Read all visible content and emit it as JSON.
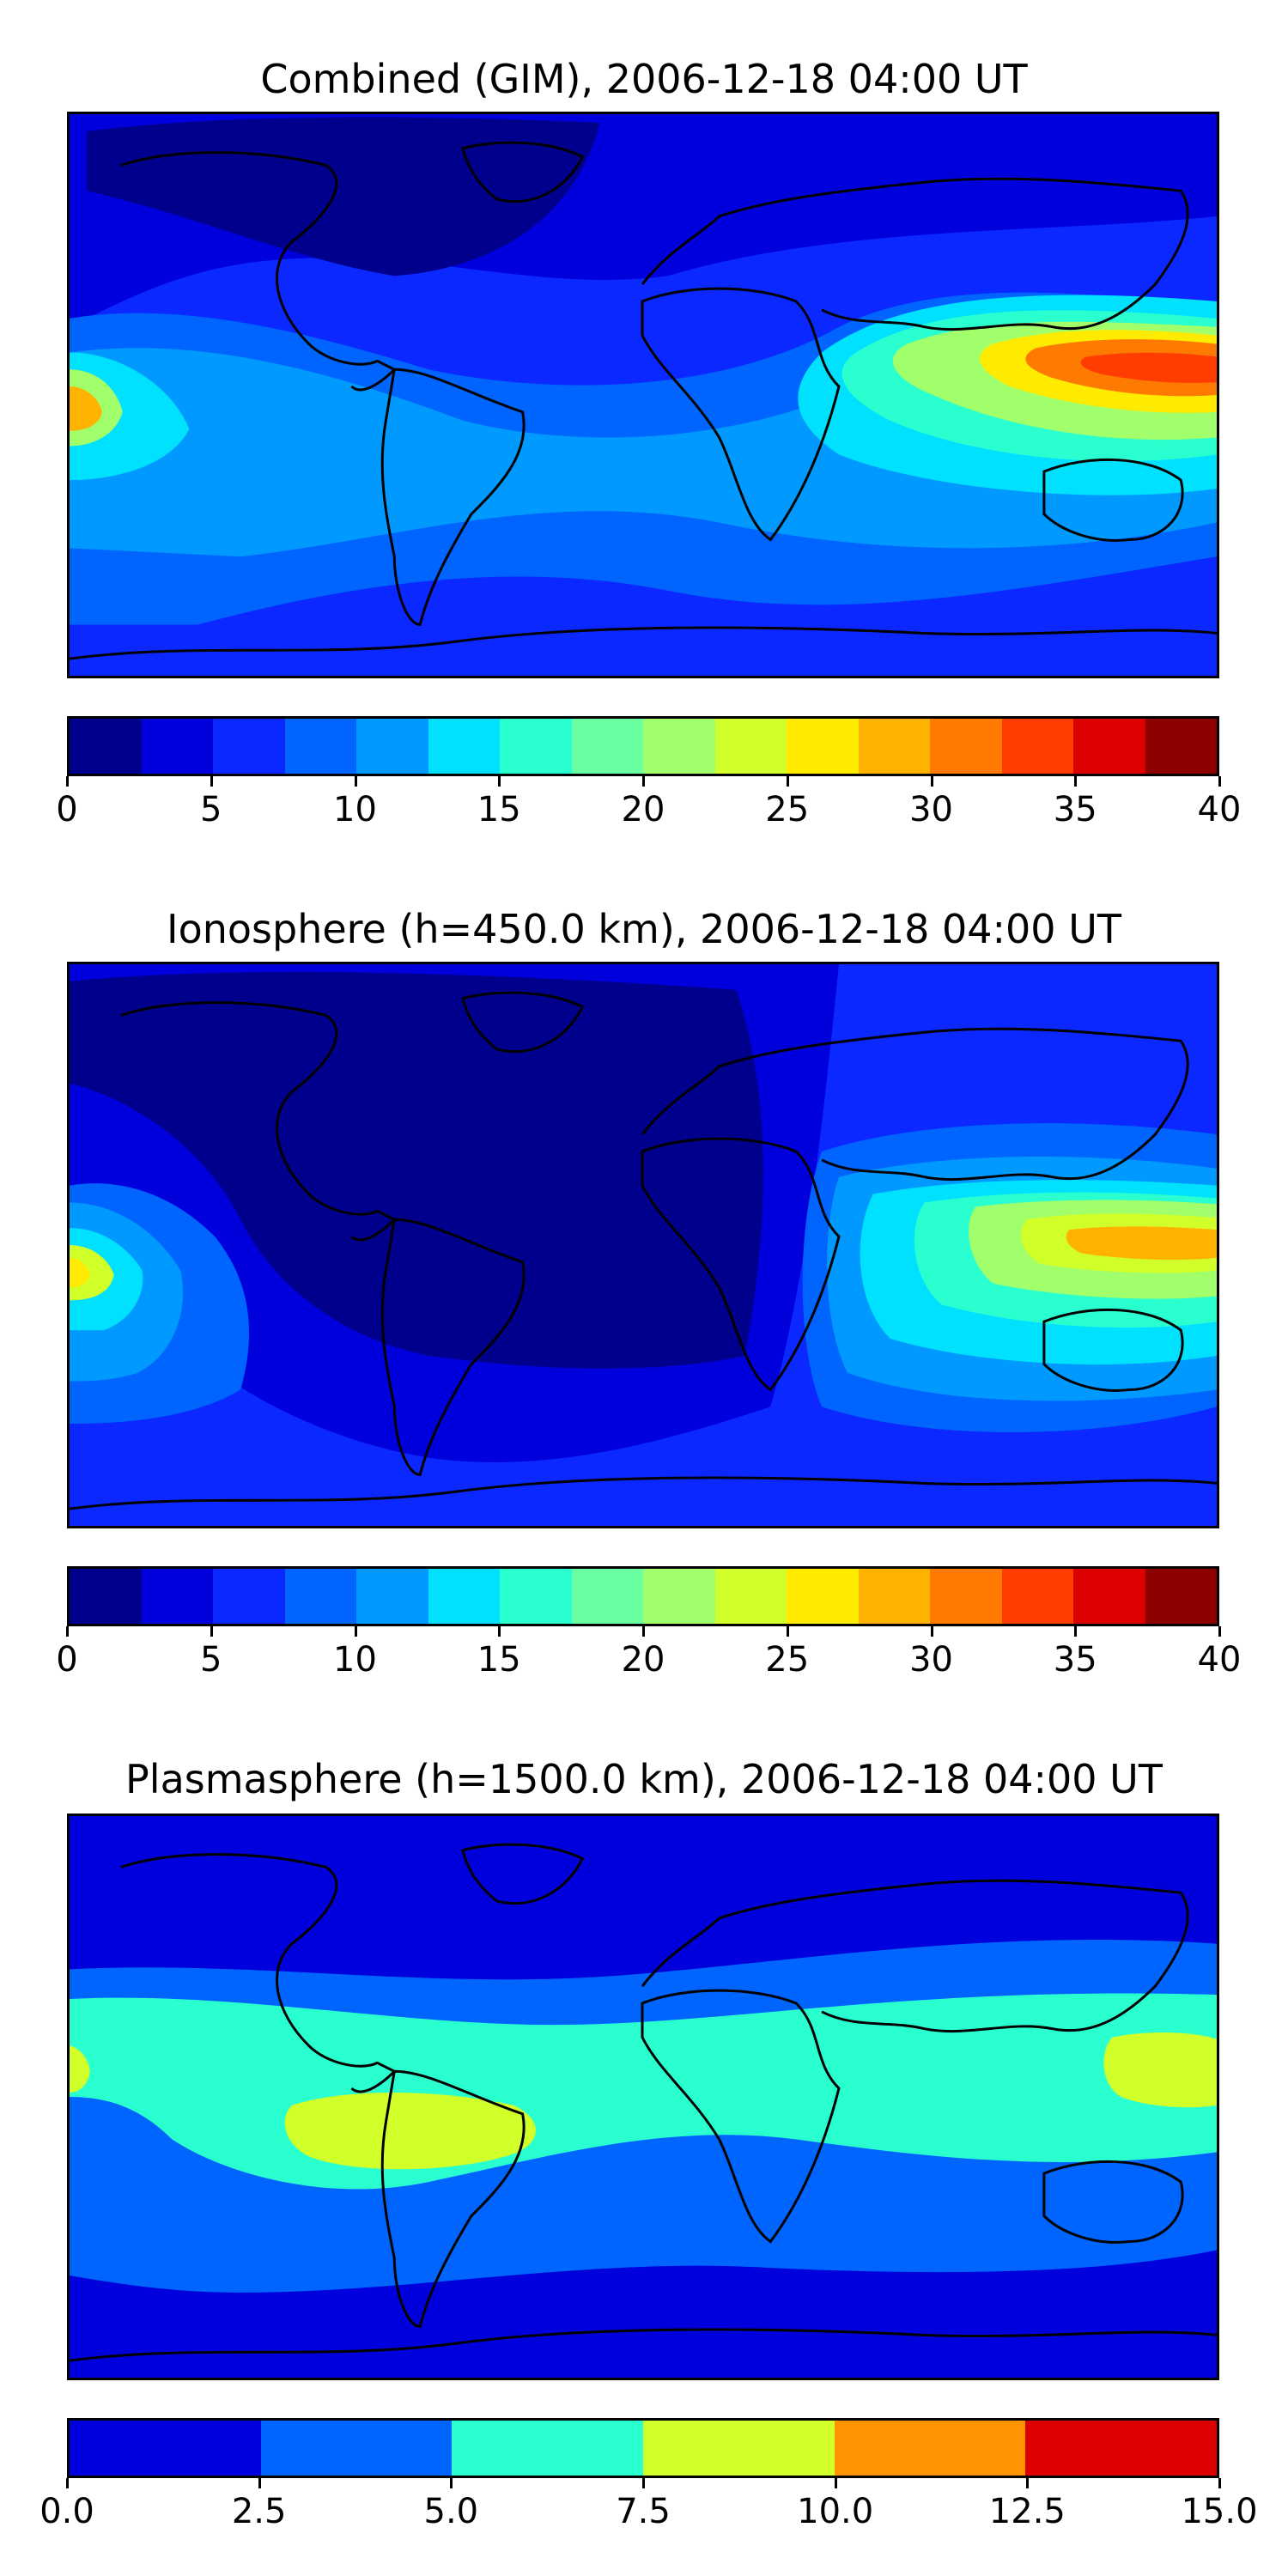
{
  "panels": [
    {
      "title": "Combined (GIM), 2006-12-18 04:00 UT",
      "colorbar": {
        "min": 0,
        "max": 40,
        "ticks": [
          "0",
          "5",
          "10",
          "15",
          "20",
          "25",
          "30",
          "35",
          "40"
        ],
        "colors": [
          "#00008d",
          "#0000dc",
          "#0a28ff",
          "#0064ff",
          "#0099ff",
          "#00e0ff",
          "#2affd0",
          "#6affa0",
          "#a0ff6a",
          "#d0ff2a",
          "#ffeb00",
          "#ffb300",
          "#ff7a00",
          "#ff3d00",
          "#dc0000",
          "#8d0000"
        ]
      },
      "field": {
        "background": "#0a28ff",
        "regions": [
          {
            "level": "0-2.5",
            "color": "#00008d",
            "where": "northern high latitudes, North America / Arctic"
          },
          {
            "level": "10-12.5",
            "color": "#0099ff",
            "where": "equatorial Pacific / South America band"
          },
          {
            "level": "20-25",
            "color": "#a0ff6a",
            "where": "Indian Ocean to Western Pacific"
          },
          {
            "level": "30-35",
            "color": "#ff3d00",
            "where": "Indonesia / New Guinea crest"
          },
          {
            "level": "25-30",
            "color": "#ffb300",
            "where": "far western edge (dateline)"
          }
        ]
      }
    },
    {
      "title": "Ionosphere  (h=450.0 km), 2006-12-18 04:00 UT",
      "colorbar": {
        "min": 0,
        "max": 40,
        "ticks": [
          "0",
          "5",
          "10",
          "15",
          "20",
          "25",
          "30",
          "35",
          "40"
        ],
        "colors": [
          "#00008d",
          "#0000dc",
          "#0a28ff",
          "#0064ff",
          "#0099ff",
          "#00e0ff",
          "#2affd0",
          "#6affa0",
          "#a0ff6a",
          "#d0ff2a",
          "#ffeb00",
          "#ffb300",
          "#ff7a00",
          "#ff3d00",
          "#dc0000",
          "#8d0000"
        ]
      },
      "field": {
        "background": "#0a28ff",
        "regions": [
          {
            "level": "0-2.5",
            "color": "#00008d",
            "where": "Atlantic, Americas, Africa"
          },
          {
            "level": "15-20",
            "color": "#2affd0",
            "where": "Indian Ocean to Western Pacific"
          },
          {
            "level": "25-30",
            "color": "#ffb300",
            "where": "Indonesia crest"
          }
        ]
      }
    },
    {
      "title": "Plasmasphere (h=1500.0 km), 2006-12-18 04:00 UT",
      "colorbar": {
        "min": 0.0,
        "max": 15.0,
        "ticks": [
          "0.0",
          "2.5",
          "5.0",
          "7.5",
          "10.0",
          "12.5",
          "15.0"
        ],
        "colors": [
          "#0000dc",
          "#0064ff",
          "#2affd0",
          "#d0ff2a",
          "#ff9300",
          "#dc0000"
        ]
      },
      "field": {
        "background": "#0000dc",
        "regions": [
          {
            "level": "2.5-5.0",
            "color": "#0064ff",
            "where": "broad low-latitude band"
          },
          {
            "level": "5.0-7.5",
            "color": "#2affd0",
            "where": "equatorial band"
          },
          {
            "level": "7.5-10.0",
            "color": "#d0ff2a",
            "where": "South America and far eastern Pacific"
          }
        ]
      }
    }
  ]
}
